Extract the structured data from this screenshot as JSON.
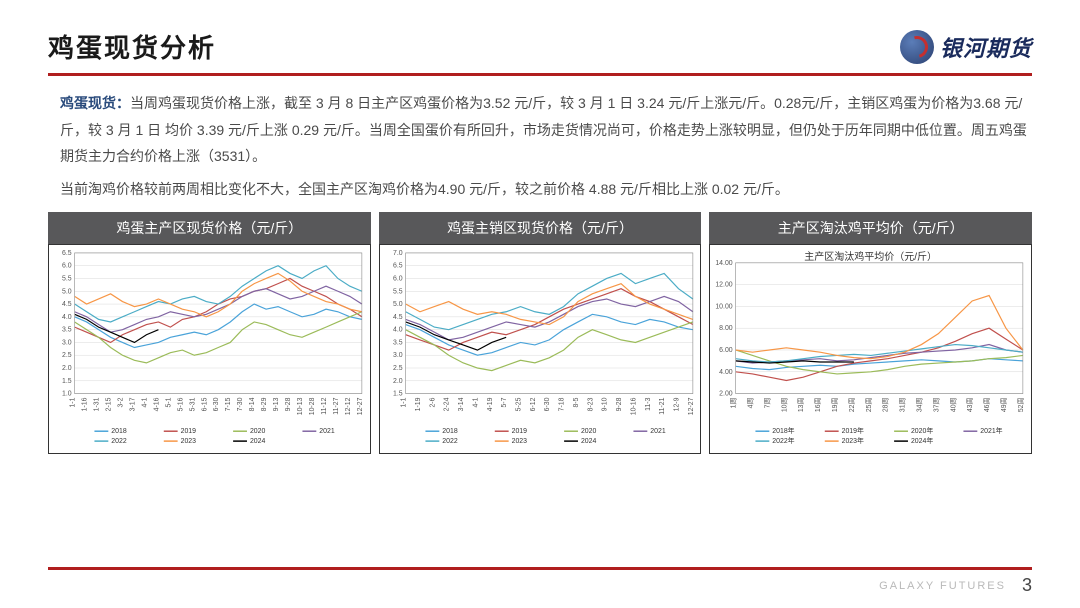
{
  "header": {
    "title": "鸡蛋现货分析",
    "logo_text": "银河期货"
  },
  "paragraphs": {
    "p1_lead": "鸡蛋现货：",
    "p1": "当周鸡蛋现货价格上涨，截至 3 月 8 日主产区鸡蛋价格为3.52 元/斤，较 3 月 1 日 3.24 元/斤上涨元/斤。0.28元/斤，主销区鸡蛋为价格为3.68 元/斤，较 3 月 1 日 均价 3.39 元/斤上涨 0.29 元/斤。当周全国蛋价有所回升，市场走货情况尚可，价格走势上涨较明显，但仍处于历年同期中低位置。周五鸡蛋期货主力合约价格上涨（3531）。",
    "p2": "当前淘鸡价格较前两周相比变化不大，全国主产区淘鸡价格为4.90 元/斤，较之前价格 4.88 元/斤相比上涨 0.02 元/斤。"
  },
  "footer": {
    "brand": "GALAXY FUTURES",
    "page": "3"
  },
  "charts": [
    {
      "title_bar": "鸡蛋主产区现货价格（元/斤）",
      "type": "line",
      "ylim": [
        1.0,
        6.5
      ],
      "ytick_step": 0.5,
      "x_labels": [
        "1-1",
        "1-16",
        "1-31",
        "2-15",
        "3-2",
        "3-17",
        "4-1",
        "4-16",
        "5-1",
        "5-16",
        "5-31",
        "6-15",
        "6-30",
        "7-15",
        "7-30",
        "8-14",
        "8-29",
        "9-13",
        "9-28",
        "10-13",
        "10-28",
        "11-12",
        "11-27",
        "12-12",
        "12-27"
      ],
      "background_color": "#ffffff",
      "grid_color": "#d9d9d9",
      "line_width": 1.2,
      "label_fontsize": 7,
      "legend_position": "bottom",
      "series": [
        {
          "name": "2018",
          "color": "#4aa3d9",
          "y": [
            4.0,
            3.8,
            3.5,
            3.2,
            3.0,
            2.8,
            2.9,
            3.0,
            3.2,
            3.3,
            3.4,
            3.3,
            3.5,
            3.8,
            4.2,
            4.5,
            4.3,
            4.4,
            4.2,
            4.0,
            4.1,
            4.3,
            4.2,
            4.0,
            3.9
          ]
        },
        {
          "name": "2019",
          "color": "#c0504d",
          "y": [
            3.6,
            3.4,
            3.2,
            3.0,
            3.3,
            3.5,
            3.7,
            3.8,
            3.6,
            3.9,
            4.0,
            4.2,
            4.5,
            4.7,
            4.8,
            5.0,
            5.1,
            5.3,
            5.5,
            5.2,
            5.0,
            4.8,
            4.5,
            4.3,
            4.0
          ]
        },
        {
          "name": "2020",
          "color": "#9bbb59",
          "y": [
            3.8,
            3.5,
            3.2,
            2.8,
            2.5,
            2.3,
            2.2,
            2.4,
            2.6,
            2.7,
            2.5,
            2.6,
            2.8,
            3.0,
            3.5,
            3.8,
            3.7,
            3.5,
            3.3,
            3.2,
            3.4,
            3.6,
            3.8,
            4.0,
            4.2
          ]
        },
        {
          "name": "2021",
          "color": "#8064a2",
          "y": [
            4.2,
            4.0,
            3.7,
            3.4,
            3.5,
            3.7,
            3.9,
            4.0,
            4.2,
            4.1,
            4.0,
            4.1,
            4.3,
            4.5,
            4.8,
            5.0,
            5.1,
            4.9,
            4.7,
            4.8,
            5.0,
            5.2,
            5.0,
            4.8,
            4.5
          ]
        },
        {
          "name": "2022",
          "color": "#4bacc6",
          "y": [
            4.5,
            4.2,
            3.9,
            3.8,
            4.0,
            4.2,
            4.4,
            4.6,
            4.5,
            4.7,
            4.8,
            4.6,
            4.5,
            4.8,
            5.2,
            5.5,
            5.8,
            6.0,
            5.7,
            5.5,
            5.8,
            6.0,
            5.5,
            5.2,
            5.0
          ]
        },
        {
          "name": "2023",
          "color": "#f79646",
          "y": [
            4.8,
            4.5,
            4.7,
            4.9,
            4.6,
            4.4,
            4.5,
            4.7,
            4.5,
            4.3,
            4.2,
            4.0,
            4.2,
            4.5,
            5.0,
            5.3,
            5.5,
            5.7,
            5.4,
            5.0,
            4.8,
            4.6,
            4.5,
            4.3,
            4.2
          ]
        },
        {
          "name": "2024",
          "color": "#000000",
          "y": [
            4.1,
            3.9,
            3.6,
            3.4,
            3.2,
            3.0,
            3.3,
            3.5,
            null,
            null,
            null,
            null,
            null,
            null,
            null,
            null,
            null,
            null,
            null,
            null,
            null,
            null,
            null,
            null,
            null
          ]
        }
      ]
    },
    {
      "title_bar": "鸡蛋主销区现货价格（元/斤）",
      "type": "line",
      "ylim": [
        1.5,
        7.0
      ],
      "ytick_step": 0.5,
      "x_labels": [
        "1-1",
        "1-19",
        "2-6",
        "2-24",
        "3-14",
        "4-1",
        "4-19",
        "5-7",
        "5-25",
        "6-12",
        "6-30",
        "7-18",
        "8-5",
        "8-23",
        "9-10",
        "9-28",
        "10-16",
        "11-3",
        "11-21",
        "12-9",
        "12-27"
      ],
      "background_color": "#ffffff",
      "grid_color": "#d9d9d9",
      "line_width": 1.2,
      "label_fontsize": 7,
      "legend_position": "bottom",
      "series": [
        {
          "name": "2018",
          "color": "#4aa3d9",
          "y": [
            4.2,
            4.0,
            3.7,
            3.4,
            3.2,
            3.0,
            3.1,
            3.3,
            3.5,
            3.4,
            3.6,
            4.0,
            4.3,
            4.6,
            4.5,
            4.3,
            4.2,
            4.4,
            4.3,
            4.1,
            4.0
          ]
        },
        {
          "name": "2019",
          "color": "#c0504d",
          "y": [
            3.8,
            3.6,
            3.4,
            3.2,
            3.5,
            3.7,
            3.9,
            3.8,
            4.0,
            4.2,
            4.5,
            4.8,
            5.0,
            5.2,
            5.4,
            5.6,
            5.3,
            5.1,
            4.8,
            4.5,
            4.2
          ]
        },
        {
          "name": "2020",
          "color": "#9bbb59",
          "y": [
            4.0,
            3.7,
            3.4,
            3.0,
            2.7,
            2.5,
            2.4,
            2.6,
            2.8,
            2.7,
            2.9,
            3.2,
            3.7,
            4.0,
            3.8,
            3.6,
            3.5,
            3.7,
            3.9,
            4.1,
            4.3
          ]
        },
        {
          "name": "2021",
          "color": "#8064a2",
          "y": [
            4.4,
            4.2,
            3.9,
            3.6,
            3.7,
            3.9,
            4.1,
            4.3,
            4.2,
            4.1,
            4.3,
            4.6,
            4.9,
            5.1,
            5.2,
            5.0,
            4.9,
            5.1,
            5.3,
            5.1,
            4.7
          ]
        },
        {
          "name": "2022",
          "color": "#4bacc6",
          "y": [
            4.7,
            4.4,
            4.1,
            4.0,
            4.2,
            4.4,
            4.6,
            4.7,
            4.9,
            4.7,
            4.6,
            4.9,
            5.4,
            5.7,
            6.0,
            6.2,
            5.8,
            6.0,
            6.2,
            5.6,
            5.2
          ]
        },
        {
          "name": "2023",
          "color": "#f79646",
          "y": [
            5.0,
            4.7,
            4.9,
            5.1,
            4.8,
            4.6,
            4.7,
            4.6,
            4.4,
            4.3,
            4.2,
            4.5,
            5.1,
            5.4,
            5.6,
            5.8,
            5.3,
            5.0,
            4.8,
            4.6,
            4.4
          ]
        },
        {
          "name": "2024",
          "color": "#000000",
          "y": [
            4.3,
            4.1,
            3.8,
            3.6,
            3.4,
            3.2,
            3.5,
            3.7,
            null,
            null,
            null,
            null,
            null,
            null,
            null,
            null,
            null,
            null,
            null,
            null,
            null
          ]
        }
      ]
    },
    {
      "title_bar": "主产区淘汰鸡平均价（元/斤）",
      "inner_title": "主产区淘汰鸡平均价（元/斤）",
      "type": "line",
      "ylim": [
        2.0,
        14.0
      ],
      "ytick_step": 2.0,
      "x_labels": [
        "1周",
        "4周",
        "7周",
        "10周",
        "13周",
        "16周",
        "19周",
        "22周",
        "25周",
        "28周",
        "31周",
        "34周",
        "37周",
        "40周",
        "43周",
        "46周",
        "49周",
        "52周"
      ],
      "background_color": "#ffffff",
      "grid_color": "#d9d9d9",
      "line_width": 1.2,
      "label_fontsize": 7,
      "legend_position": "bottom",
      "series": [
        {
          "name": "2018年",
          "color": "#4aa3d9",
          "y": [
            4.5,
            4.3,
            4.2,
            4.4,
            4.5,
            4.6,
            4.5,
            4.7,
            4.8,
            4.9,
            5.0,
            5.1,
            5.0,
            4.9,
            5.0,
            5.2,
            5.1,
            5.0
          ]
        },
        {
          "name": "2019年",
          "color": "#c0504d",
          "y": [
            4.0,
            3.8,
            3.5,
            3.2,
            3.5,
            4.0,
            4.5,
            4.8,
            5.0,
            5.2,
            5.5,
            5.8,
            6.2,
            6.8,
            7.5,
            8.0,
            7.0,
            6.0
          ]
        },
        {
          "name": "2020年",
          "color": "#9bbb59",
          "y": [
            6.0,
            5.5,
            5.0,
            4.5,
            4.2,
            4.0,
            3.8,
            3.9,
            4.0,
            4.2,
            4.5,
            4.7,
            4.8,
            4.9,
            5.0,
            5.2,
            5.3,
            5.5
          ]
        },
        {
          "name": "2021年",
          "color": "#8064a2",
          "y": [
            5.0,
            4.8,
            4.9,
            5.0,
            5.1,
            5.2,
            5.0,
            5.1,
            5.3,
            5.5,
            5.7,
            5.8,
            5.9,
            6.0,
            6.2,
            6.5,
            6.0,
            5.8
          ]
        },
        {
          "name": "2022年",
          "color": "#4bacc6",
          "y": [
            5.2,
            5.0,
            4.9,
            5.0,
            5.2,
            5.4,
            5.5,
            5.6,
            5.5,
            5.7,
            5.9,
            6.1,
            6.3,
            6.5,
            6.4,
            6.2,
            6.0,
            5.8
          ]
        },
        {
          "name": "2023年",
          "color": "#f79646",
          "y": [
            6.0,
            5.8,
            6.0,
            6.2,
            6.0,
            5.8,
            5.5,
            5.3,
            5.2,
            5.4,
            5.8,
            6.5,
            7.5,
            9.0,
            10.5,
            11.0,
            8.0,
            6.0
          ]
        },
        {
          "name": "2024年",
          "color": "#000000",
          "y": [
            5.0,
            4.9,
            4.8,
            4.9,
            5.0,
            4.9,
            4.9,
            4.9,
            null,
            null,
            null,
            null,
            null,
            null,
            null,
            null,
            null,
            null
          ]
        }
      ]
    }
  ]
}
